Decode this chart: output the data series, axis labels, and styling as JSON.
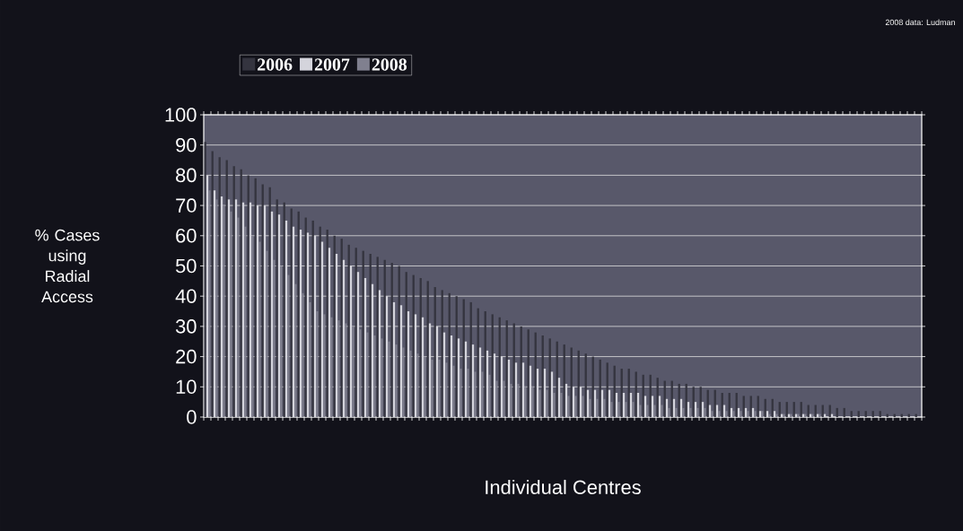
{
  "chart_data": {
    "type": "bar",
    "xlabel": "Individual Centres",
    "ylabel": "% Cases using Radial Access",
    "annotations": [
      "2008 data: Ludman"
    ],
    "categories": [
      null,
      null,
      null,
      null,
      null,
      null,
      null,
      null,
      null,
      null,
      null,
      null,
      null,
      null,
      null,
      null,
      null,
      null,
      null,
      null,
      null,
      null,
      null,
      null,
      null,
      null,
      null,
      null,
      null,
      null,
      null,
      null,
      null,
      null,
      null,
      null,
      null,
      null,
      null,
      null,
      null,
      null,
      null,
      null,
      null,
      null,
      null,
      null,
      null,
      null,
      null,
      null,
      null,
      null,
      null,
      null,
      null,
      null,
      null,
      null,
      null,
      null,
      null,
      null,
      null,
      null,
      null,
      null,
      null,
      null,
      null,
      null,
      null,
      null,
      null,
      null,
      null,
      null,
      null,
      null,
      null,
      null,
      null,
      null,
      null,
      null,
      null,
      null,
      null,
      null,
      null,
      null,
      null,
      null,
      null,
      null,
      null,
      null,
      null,
      null
    ],
    "series": [
      {
        "name": "2006",
        "color": "#34343f",
        "values": [
          91,
          88,
          86,
          85,
          83,
          82,
          80,
          79,
          77,
          76,
          72,
          71,
          69,
          68,
          66,
          65,
          63,
          62,
          60,
          59,
          57,
          56,
          55,
          54,
          53,
          52,
          51,
          50,
          48,
          47,
          46,
          45,
          43,
          42,
          41,
          40,
          39,
          38,
          36,
          35,
          34,
          33,
          32,
          31,
          30,
          29,
          28,
          27,
          26,
          25,
          24,
          23,
          22,
          21,
          20,
          19,
          18,
          17,
          16,
          16,
          15,
          14,
          14,
          13,
          12,
          12,
          11,
          11,
          10,
          10,
          9,
          9,
          8,
          8,
          8,
          7,
          7,
          7,
          6,
          6,
          5,
          5,
          5,
          5,
          4,
          4,
          4,
          4,
          3,
          3,
          2,
          2,
          2,
          2,
          2,
          1,
          1,
          1,
          1,
          1
        ]
      },
      {
        "name": "2007",
        "color": "#d4d4dc",
        "values": [
          80,
          75,
          73,
          72,
          72,
          71,
          71,
          70,
          70,
          68,
          67,
          65,
          63,
          62,
          61,
          60,
          58,
          56,
          54,
          52,
          50,
          48,
          46,
          44,
          42,
          40,
          38,
          37,
          35,
          34,
          33,
          31,
          30,
          28,
          27,
          26,
          25,
          24,
          23,
          22,
          21,
          20,
          19,
          18,
          18,
          17,
          16,
          16,
          15,
          13,
          11,
          10,
          10,
          9,
          9,
          9,
          9,
          8,
          8,
          8,
          8,
          7,
          7,
          7,
          6,
          6,
          6,
          5,
          5,
          5,
          4,
          4,
          4,
          3,
          3,
          3,
          3,
          2,
          2,
          2,
          1,
          1,
          1,
          1,
          1,
          1,
          1,
          1,
          0,
          0,
          0,
          0,
          0,
          0,
          0,
          0,
          0,
          0,
          0,
          0
        ]
      },
      {
        "name": "2008",
        "color": "#80808f",
        "values": [
          75,
          72,
          70,
          68,
          66,
          63,
          60,
          58,
          55,
          52,
          50,
          47,
          44,
          41,
          38,
          35,
          34,
          33,
          32,
          31,
          30,
          29,
          28,
          27,
          26,
          25,
          24,
          23,
          22,
          21,
          20,
          19,
          19,
          18,
          17,
          16,
          16,
          15,
          15,
          14,
          12,
          12,
          11,
          11,
          10,
          10,
          9,
          9,
          8,
          8,
          7,
          7,
          7,
          6,
          6,
          6,
          5,
          5,
          5,
          5,
          4,
          4,
          4,
          4,
          3,
          3,
          3,
          3,
          3,
          3,
          2,
          2,
          2,
          2,
          2,
          2,
          2,
          2,
          1,
          1,
          1,
          1,
          1,
          1,
          1,
          1,
          0,
          0,
          0,
          0,
          0,
          0,
          0,
          0,
          0,
          0,
          0,
          0,
          0,
          0
        ]
      }
    ],
    "ylim": [
      0,
      100
    ],
    "yticks": [
      0,
      10,
      20,
      30,
      40,
      50,
      60,
      70,
      80,
      90,
      100
    ],
    "grid": "y",
    "legend": "top"
  }
}
